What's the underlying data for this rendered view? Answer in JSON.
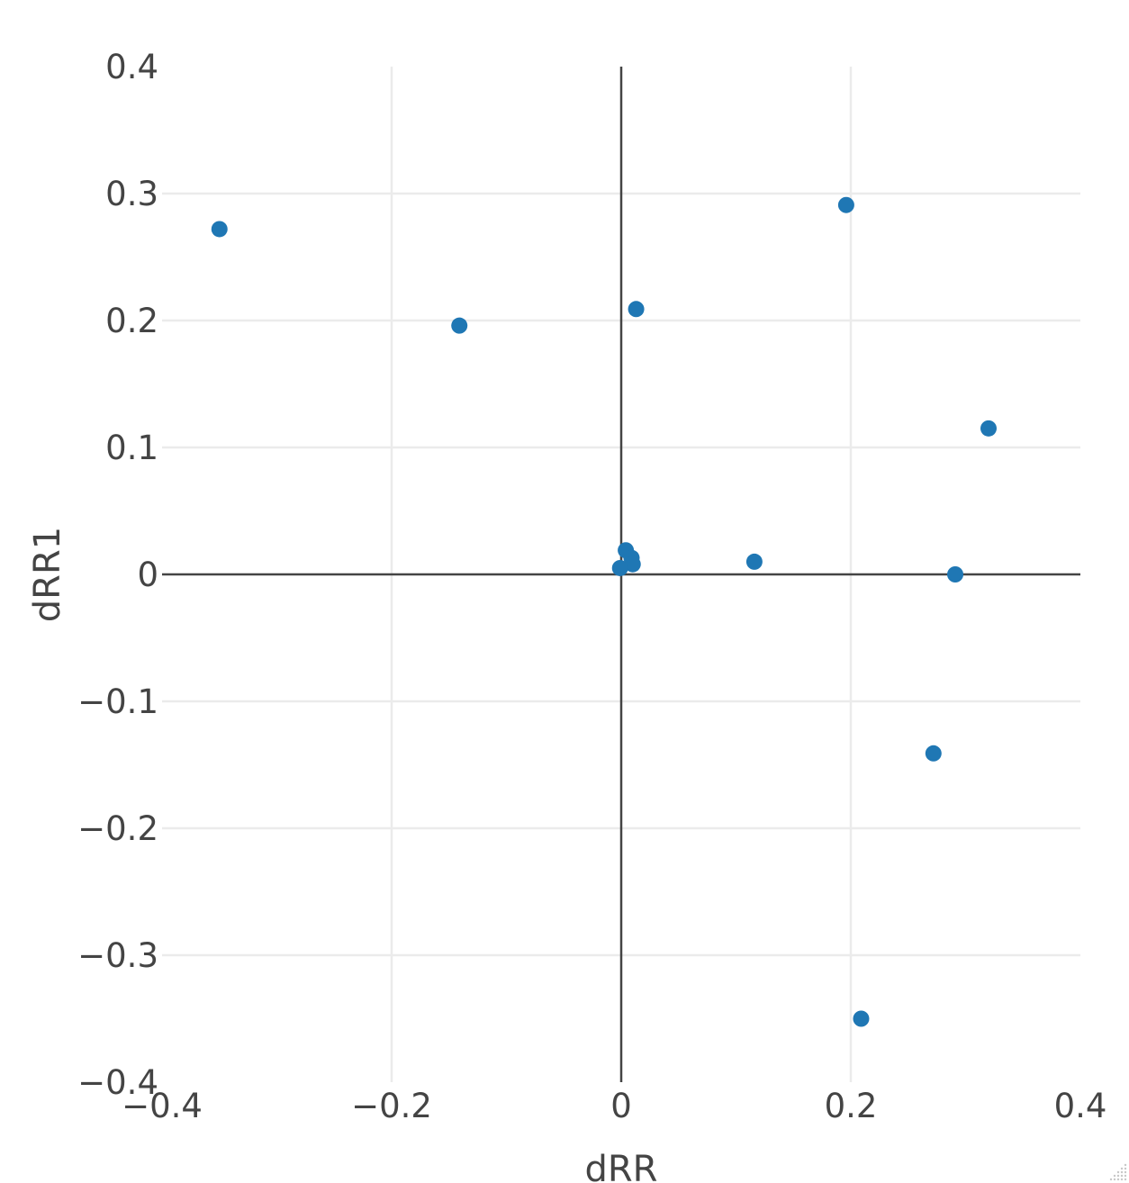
{
  "chart_data": {
    "type": "scatter",
    "xlabel": "dRR",
    "ylabel": "dRR1",
    "xlim": [
      -0.4,
      0.4
    ],
    "ylim": [
      -0.4,
      0.4
    ],
    "grid": true,
    "legend": false,
    "color": "#1f77b4",
    "x_ticks": [
      {
        "value": -0.4,
        "label": "−0.4"
      },
      {
        "value": -0.2,
        "label": "−0.2"
      },
      {
        "value": 0,
        "label": "0"
      },
      {
        "value": 0.2,
        "label": "0.2"
      },
      {
        "value": 0.4,
        "label": "0.4"
      }
    ],
    "y_ticks": [
      {
        "value": 0.4,
        "label": "0.4"
      },
      {
        "value": 0.3,
        "label": "0.3"
      },
      {
        "value": 0.2,
        "label": "0.2"
      },
      {
        "value": 0.1,
        "label": "0.1"
      },
      {
        "value": 0,
        "label": "0"
      },
      {
        "value": -0.1,
        "label": "−0.1"
      },
      {
        "value": -0.2,
        "label": "−0.2"
      },
      {
        "value": -0.3,
        "label": "−0.3"
      },
      {
        "value": -0.4,
        "label": "−0.4"
      }
    ],
    "points": [
      {
        "x": -0.35,
        "y": 0.272
      },
      {
        "x": -0.141,
        "y": 0.196
      },
      {
        "x": 0.013,
        "y": 0.209
      },
      {
        "x": 0.196,
        "y": 0.291
      },
      {
        "x": 0.32,
        "y": 0.115
      },
      {
        "x": 0.004,
        "y": 0.019
      },
      {
        "x": 0.009,
        "y": 0.013
      },
      {
        "x": 0.01,
        "y": 0.008
      },
      {
        "x": -0.001,
        "y": 0.005
      },
      {
        "x": 0.116,
        "y": 0.01
      },
      {
        "x": 0.291,
        "y": 0.0
      },
      {
        "x": 0.272,
        "y": -0.141
      },
      {
        "x": 0.209,
        "y": -0.35
      }
    ]
  }
}
